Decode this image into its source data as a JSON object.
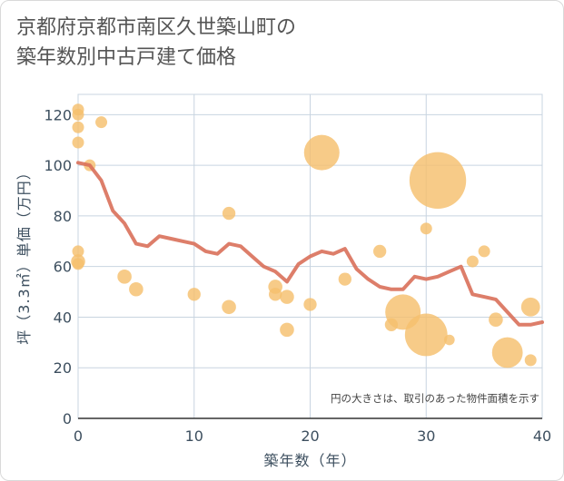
{
  "title": {
    "line1": "京都府京都市南区久世築山町の",
    "line2": "築年数別中古戸建て価格"
  },
  "chart_data": {
    "type": "scatter",
    "xlabel": "築年数（年）",
    "ylabel": "坪（3.3㎡）単価（万円）",
    "xlim": [
      0,
      40
    ],
    "ylim": [
      0,
      128
    ],
    "xticks": [
      0,
      10,
      20,
      30,
      40
    ],
    "yticks": [
      0,
      20,
      40,
      60,
      80,
      100,
      120
    ],
    "grid": true,
    "note": "円の大きさは、取引のあった物件面積を示す",
    "colors": {
      "bubble": "#f5c06e",
      "line": "#d9705a",
      "grid": "#c8d4e0"
    },
    "bubbles": [
      {
        "x": 0,
        "y": 122,
        "size": 1
      },
      {
        "x": 0,
        "y": 120,
        "size": 1
      },
      {
        "x": 0,
        "y": 115,
        "size": 1
      },
      {
        "x": 0,
        "y": 109,
        "size": 1
      },
      {
        "x": 0,
        "y": 66,
        "size": 1
      },
      {
        "x": 0,
        "y": 62,
        "size": 1.2
      },
      {
        "x": 0,
        "y": 61,
        "size": 1
      },
      {
        "x": 1,
        "y": 100,
        "size": 1
      },
      {
        "x": 2,
        "y": 117,
        "size": 1
      },
      {
        "x": 4,
        "y": 56,
        "size": 1.2
      },
      {
        "x": 5,
        "y": 51,
        "size": 1.2
      },
      {
        "x": 10,
        "y": 49,
        "size": 1.1
      },
      {
        "x": 13,
        "y": 81,
        "size": 1.1
      },
      {
        "x": 13,
        "y": 44,
        "size": 1.2
      },
      {
        "x": 17,
        "y": 52,
        "size": 1.2
      },
      {
        "x": 17,
        "y": 49,
        "size": 1.1
      },
      {
        "x": 18,
        "y": 48,
        "size": 1.2
      },
      {
        "x": 18,
        "y": 35,
        "size": 1.2
      },
      {
        "x": 20,
        "y": 45,
        "size": 1.1
      },
      {
        "x": 21,
        "y": 105,
        "size": 3
      },
      {
        "x": 23,
        "y": 55,
        "size": 1.1
      },
      {
        "x": 26,
        "y": 66,
        "size": 1.1
      },
      {
        "x": 27,
        "y": 37,
        "size": 1.1
      },
      {
        "x": 28,
        "y": 42,
        "size": 3
      },
      {
        "x": 30,
        "y": 75,
        "size": 1
      },
      {
        "x": 30,
        "y": 33,
        "size": 3.6
      },
      {
        "x": 31,
        "y": 94,
        "size": 4.8
      },
      {
        "x": 32,
        "y": 31,
        "size": 0.9
      },
      {
        "x": 34,
        "y": 62,
        "size": 1
      },
      {
        "x": 35,
        "y": 66,
        "size": 1
      },
      {
        "x": 36,
        "y": 39,
        "size": 1.2
      },
      {
        "x": 37,
        "y": 26,
        "size": 2.6
      },
      {
        "x": 39,
        "y": 44,
        "size": 1.6
      },
      {
        "x": 39,
        "y": 23,
        "size": 1
      }
    ],
    "line": [
      {
        "x": 0,
        "y": 101
      },
      {
        "x": 1,
        "y": 100
      },
      {
        "x": 2,
        "y": 94
      },
      {
        "x": 3,
        "y": 82
      },
      {
        "x": 4,
        "y": 77
      },
      {
        "x": 5,
        "y": 69
      },
      {
        "x": 6,
        "y": 68
      },
      {
        "x": 7,
        "y": 72
      },
      {
        "x": 8,
        "y": 71
      },
      {
        "x": 9,
        "y": 70
      },
      {
        "x": 10,
        "y": 69
      },
      {
        "x": 11,
        "y": 66
      },
      {
        "x": 12,
        "y": 65
      },
      {
        "x": 13,
        "y": 69
      },
      {
        "x": 14,
        "y": 68
      },
      {
        "x": 15,
        "y": 64
      },
      {
        "x": 16,
        "y": 60
      },
      {
        "x": 17,
        "y": 58
      },
      {
        "x": 18,
        "y": 54
      },
      {
        "x": 19,
        "y": 61
      },
      {
        "x": 20,
        "y": 64
      },
      {
        "x": 21,
        "y": 66
      },
      {
        "x": 22,
        "y": 65
      },
      {
        "x": 23,
        "y": 67
      },
      {
        "x": 24,
        "y": 59
      },
      {
        "x": 25,
        "y": 55
      },
      {
        "x": 26,
        "y": 52
      },
      {
        "x": 27,
        "y": 51
      },
      {
        "x": 28,
        "y": 51
      },
      {
        "x": 29,
        "y": 56
      },
      {
        "x": 30,
        "y": 55
      },
      {
        "x": 31,
        "y": 56
      },
      {
        "x": 32,
        "y": 58
      },
      {
        "x": 33,
        "y": 60
      },
      {
        "x": 34,
        "y": 49
      },
      {
        "x": 35,
        "y": 48
      },
      {
        "x": 36,
        "y": 47
      },
      {
        "x": 37,
        "y": 42
      },
      {
        "x": 38,
        "y": 37
      },
      {
        "x": 39,
        "y": 37
      },
      {
        "x": 40,
        "y": 38
      }
    ]
  }
}
